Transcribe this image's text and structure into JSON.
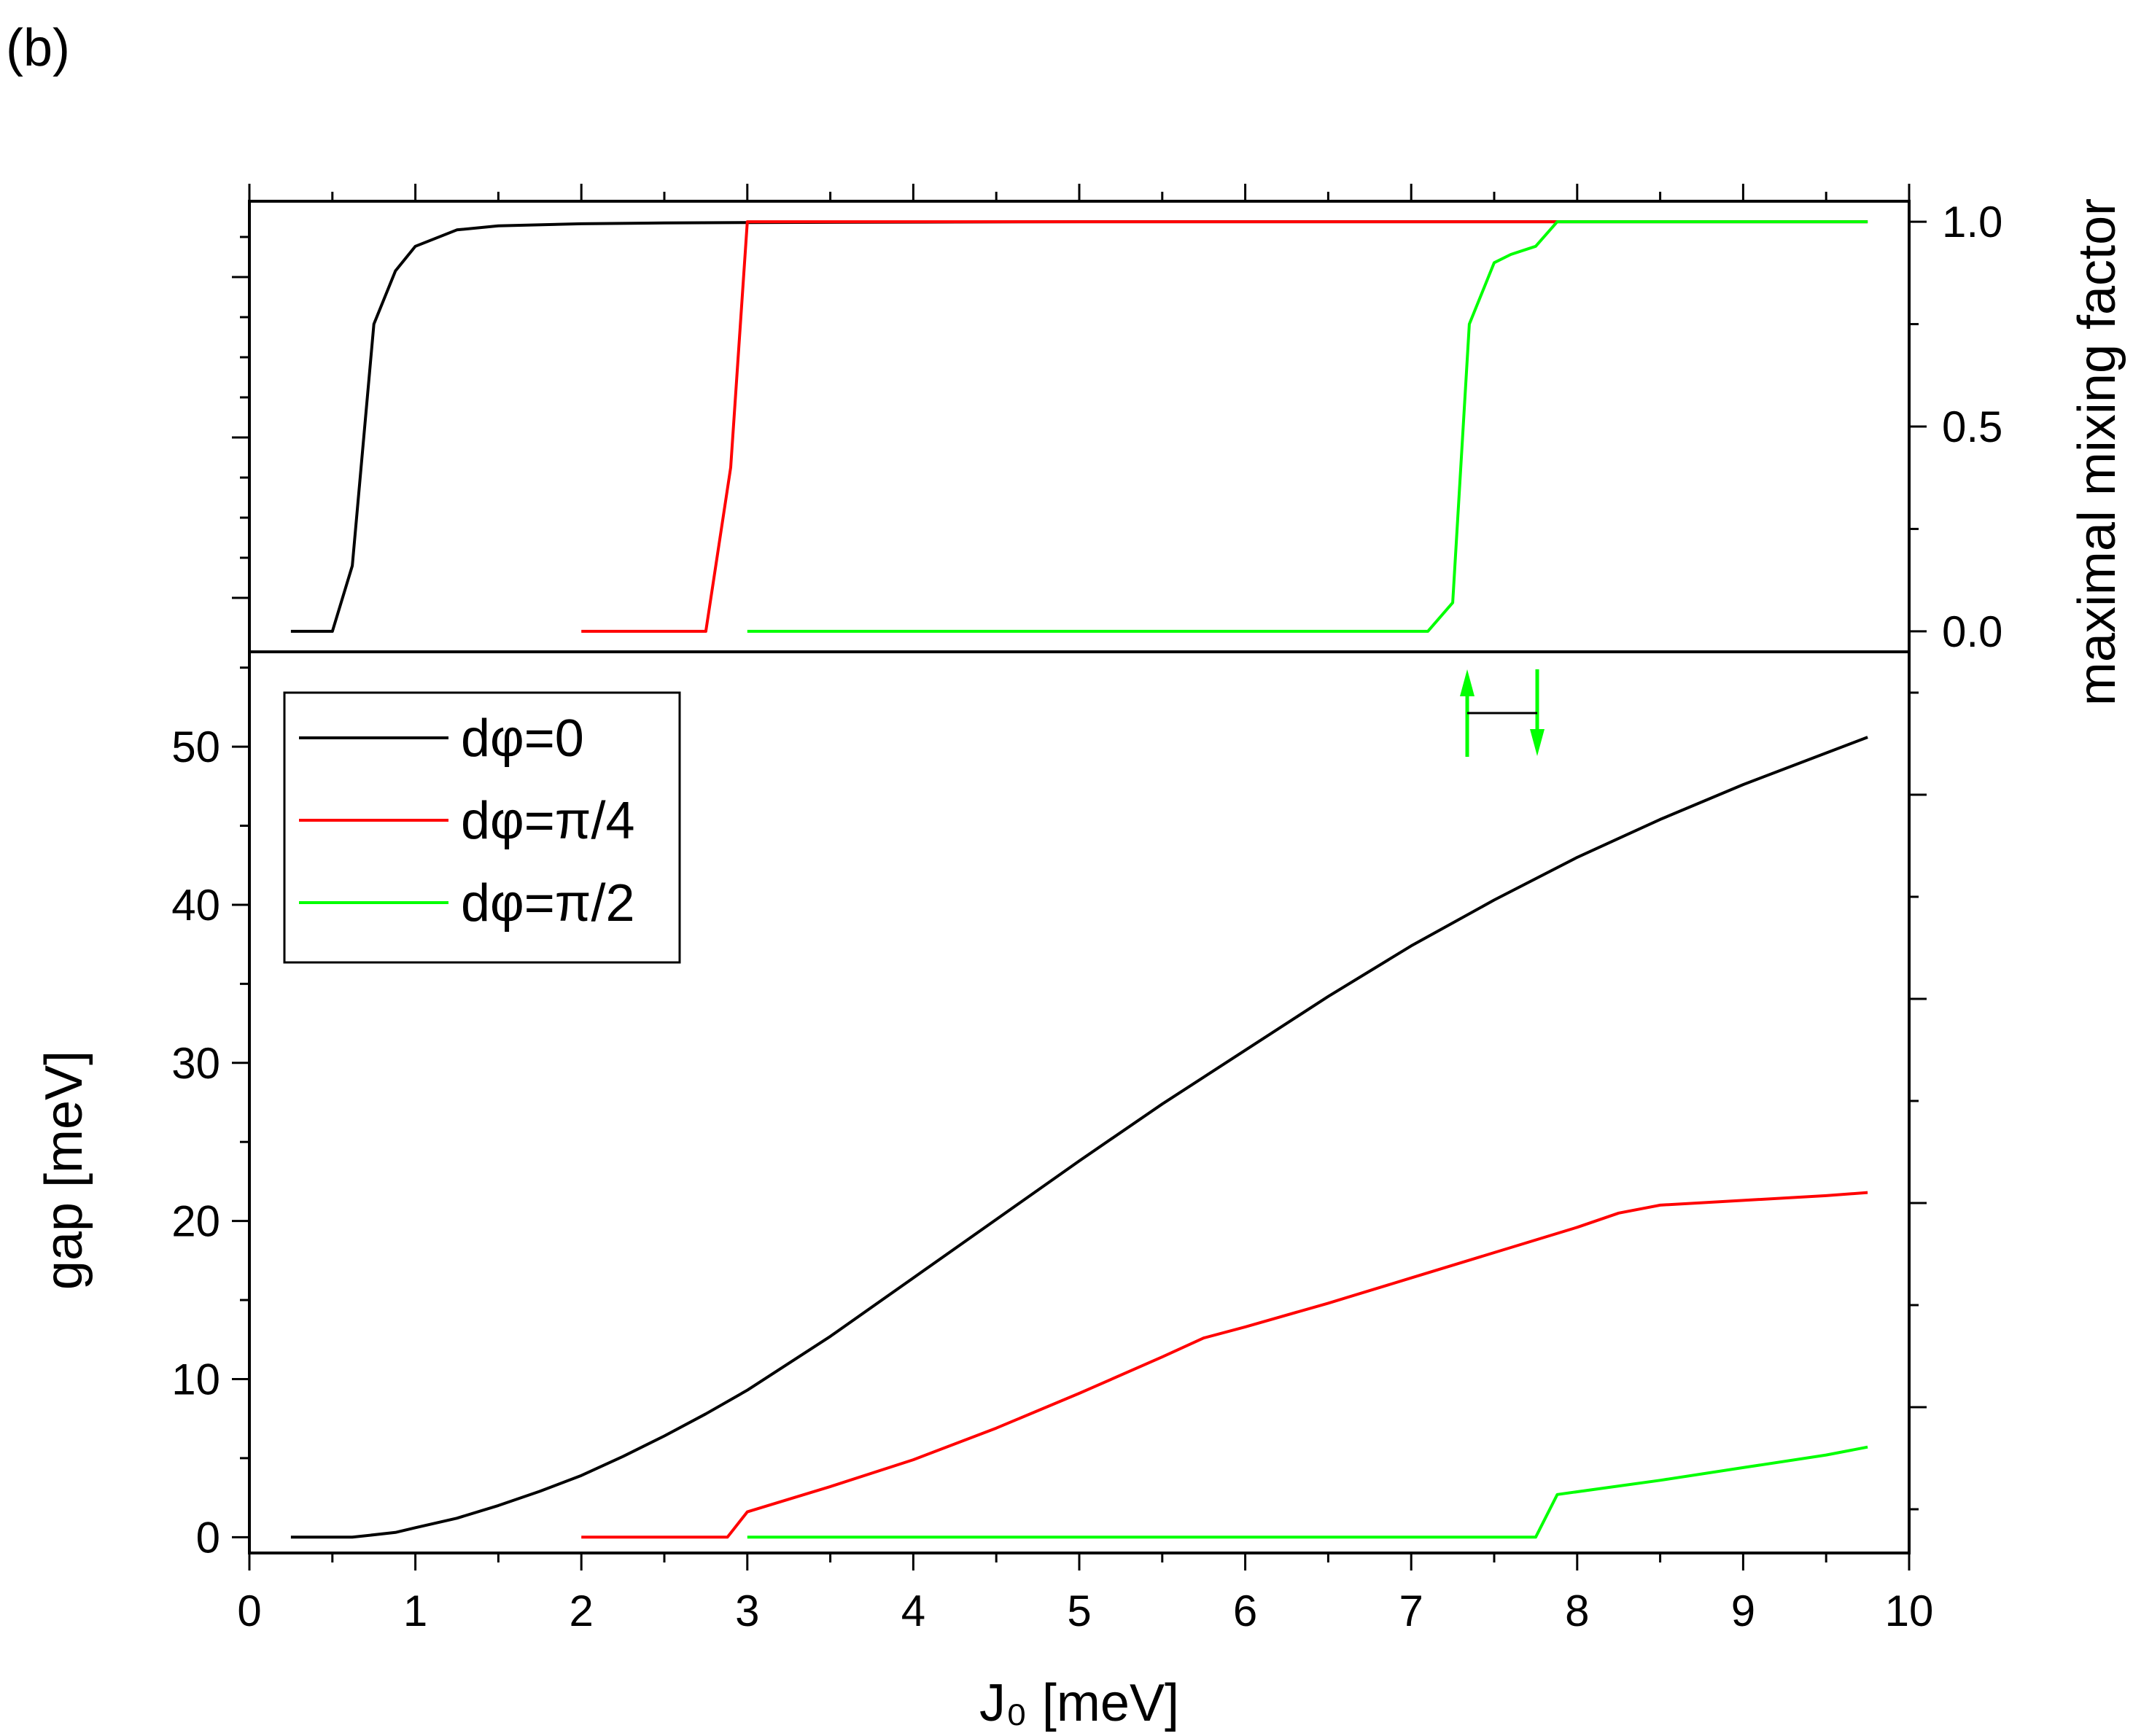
{
  "panel_label": "(b)",
  "chart_data": [
    {
      "type": "line",
      "panel": "top",
      "xlabel": "",
      "ylabel": "maximal mixing factor",
      "y_axis_side": "right",
      "xlim": [
        0,
        10
      ],
      "ylim": [
        -0.05,
        1.05
      ],
      "yticks": [
        0.0,
        0.5,
        1.0
      ],
      "ytick_labels": [
        "0.0",
        "0.5",
        "1.0"
      ],
      "grid": false,
      "series": [
        {
          "name": "dφ=0",
          "color": "#000000",
          "x": [
            0.25,
            0.5,
            0.62,
            0.75,
            0.88,
            1.0,
            1.25,
            1.5,
            2.0,
            2.5,
            3.0,
            5.0,
            8.0,
            9.75
          ],
          "y": [
            0.0,
            0.0,
            0.16,
            0.75,
            0.88,
            0.94,
            0.98,
            0.99,
            0.995,
            0.997,
            0.998,
            1.0,
            1.0,
            1.0
          ]
        },
        {
          "name": "dφ=π/4",
          "color": "#ff0000",
          "x": [
            2.0,
            2.75,
            2.9,
            3.0,
            5.0,
            7.0,
            9.75
          ],
          "y": [
            0.0,
            0.0,
            0.4,
            1.0,
            1.0,
            1.0,
            1.0
          ]
        },
        {
          "name": "dφ=π/2",
          "color": "#00ff00",
          "x": [
            3.0,
            5.0,
            7.1,
            7.25,
            7.35,
            7.5,
            7.6,
            7.75,
            7.88,
            9.0,
            9.75
          ],
          "y": [
            0.0,
            0.0,
            0.0,
            0.07,
            0.75,
            0.9,
            0.92,
            0.94,
            1.0,
            1.0,
            1.0
          ]
        }
      ]
    },
    {
      "type": "line",
      "panel": "bottom",
      "xlabel": "J₀ [meV]",
      "ylabel": "gap [meV]",
      "xlim": [
        0,
        10
      ],
      "ylim": [
        -1,
        56
      ],
      "xticks": [
        0,
        1,
        2,
        3,
        4,
        5,
        6,
        7,
        8,
        9,
        10
      ],
      "xtick_labels": [
        "0",
        "1",
        "2",
        "3",
        "4",
        "5",
        "6",
        "7",
        "8",
        "9",
        "10"
      ],
      "yticks": [
        0,
        10,
        20,
        30,
        40,
        50
      ],
      "ytick_labels": [
        "0",
        "10",
        "20",
        "30",
        "40",
        "50"
      ],
      "grid": false,
      "legend_position": "top-left",
      "series": [
        {
          "name": "dφ=0",
          "color": "#000000",
          "x": [
            0.25,
            0.62,
            0.88,
            1.0,
            1.25,
            1.5,
            1.75,
            2.0,
            2.25,
            2.5,
            2.75,
            3.0,
            3.5,
            4.0,
            4.5,
            5.0,
            5.5,
            6.0,
            6.5,
            7.0,
            7.5,
            8.0,
            8.5,
            9.0,
            9.5,
            9.75
          ],
          "y": [
            0.0,
            0.0,
            0.3,
            0.6,
            1.2,
            2.0,
            2.9,
            3.9,
            5.1,
            6.4,
            7.8,
            9.3,
            12.7,
            16.4,
            20.1,
            23.8,
            27.4,
            30.8,
            34.2,
            37.4,
            40.3,
            43.0,
            45.4,
            47.6,
            49.6,
            50.6
          ]
        },
        {
          "name": "dφ=π/4",
          "color": "#ff0000",
          "x": [
            2.0,
            2.88,
            3.0,
            3.5,
            4.0,
            4.5,
            5.0,
            5.5,
            5.75,
            6.0,
            6.5,
            7.0,
            7.5,
            8.0,
            8.25,
            8.5,
            9.0,
            9.5,
            9.75
          ],
          "y": [
            0.0,
            0.0,
            1.6,
            3.2,
            4.9,
            6.9,
            9.1,
            11.4,
            12.6,
            13.3,
            14.8,
            16.4,
            18.0,
            19.6,
            20.5,
            21.0,
            21.3,
            21.6,
            21.8
          ]
        },
        {
          "name": "dφ=π/2",
          "color": "#00ff00",
          "x": [
            3.0,
            5.0,
            7.0,
            7.75,
            7.88,
            8.5,
            9.0,
            9.5,
            9.75
          ],
          "y": [
            0.0,
            0.0,
            0.0,
            0.0,
            2.7,
            3.6,
            4.4,
            5.2,
            5.7
          ]
        }
      ]
    }
  ]
}
